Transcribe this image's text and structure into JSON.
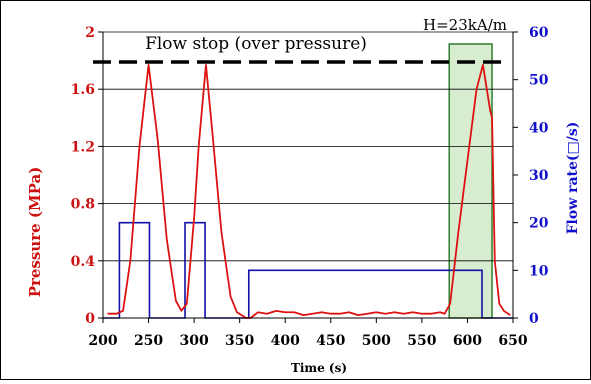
{
  "chart_data": {
    "type": "line",
    "xlabel": "Time (s)",
    "ylabel_left": "Pressure (MPa)",
    "ylabel_right": "Flow rate(□/s)",
    "annotation_flow_stop": "Flow stop (over pressure)",
    "annotation_field": "H=23kA/m",
    "xlim": [
      200,
      650
    ],
    "ylim_left": [
      0,
      2
    ],
    "ylim_right": [
      0,
      60
    ],
    "x_ticks": [
      "200",
      "250",
      "300",
      "350",
      "400",
      "450",
      "500",
      "550",
      "600",
      "650"
    ],
    "y_ticks_left": [
      "0",
      "0.4",
      "0.8",
      "1.2",
      "1.6",
      "2"
    ],
    "y_ticks_right": [
      "0",
      "10",
      "20",
      "30",
      "40",
      "50",
      "60"
    ],
    "grid": "horizontal",
    "flow_stop_level": 1.79,
    "highlight_region": [
      580,
      627
    ],
    "colors": {
      "pressure": "#dd1111",
      "flow": "#1111aa",
      "left_axis_text": "#cc1111",
      "right_axis_text": "#1111cc",
      "highlight_fill": "#d8ecd0",
      "highlight_stroke": "#2e7d2e",
      "dashed_line": "#000000"
    },
    "series": [
      {
        "axis": "left",
        "x": [
          205,
          215,
          222,
          230,
          240,
          250,
          260,
          270,
          280,
          286,
          292,
          300,
          305,
          313,
          320,
          330,
          340,
          347,
          352,
          357,
          362,
          370,
          380,
          390,
          400,
          410,
          420,
          430,
          440,
          450,
          460,
          470,
          480,
          490,
          500,
          510,
          520,
          530,
          540,
          550,
          560,
          570,
          575,
          581,
          590,
          600,
          610,
          617,
          620,
          625,
          627,
          630,
          635,
          640,
          647
        ],
        "values": [
          0.03,
          0.03,
          0.05,
          0.4,
          1.2,
          1.77,
          1.25,
          0.55,
          0.12,
          0.05,
          0.1,
          0.7,
          1.2,
          1.77,
          1.3,
          0.6,
          0.15,
          0.04,
          0.02,
          0.0,
          0.0,
          0.04,
          0.03,
          0.05,
          0.04,
          0.04,
          0.02,
          0.03,
          0.04,
          0.03,
          0.03,
          0.04,
          0.02,
          0.03,
          0.04,
          0.03,
          0.04,
          0.03,
          0.04,
          0.03,
          0.03,
          0.04,
          0.03,
          0.1,
          0.6,
          1.1,
          1.6,
          1.77,
          1.65,
          1.45,
          1.4,
          0.4,
          0.1,
          0.05,
          0.02
        ]
      },
      {
        "axis": "right",
        "x": [
          200,
          218,
          218,
          251,
          251,
          290,
          290,
          312,
          312,
          360,
          360,
          616,
          616,
          650
        ],
        "values": [
          0,
          0,
          20,
          20,
          0,
          0,
          20,
          20,
          0,
          0,
          10,
          10,
          0,
          0
        ]
      }
    ]
  }
}
